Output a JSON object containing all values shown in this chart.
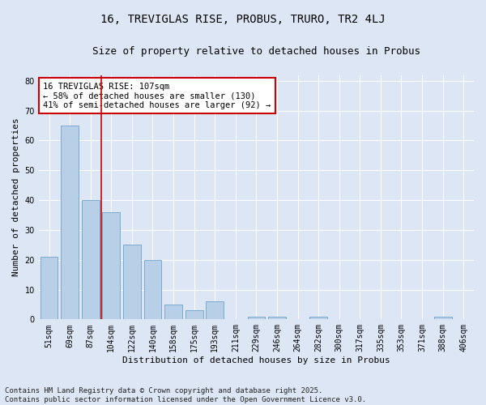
{
  "title1": "16, TREVIGLAS RISE, PROBUS, TRURO, TR2 4LJ",
  "title2": "Size of property relative to detached houses in Probus",
  "xlabel": "Distribution of detached houses by size in Probus",
  "ylabel": "Number of detached properties",
  "categories": [
    "51sqm",
    "69sqm",
    "87sqm",
    "104sqm",
    "122sqm",
    "140sqm",
    "158sqm",
    "175sqm",
    "193sqm",
    "211sqm",
    "229sqm",
    "246sqm",
    "264sqm",
    "282sqm",
    "300sqm",
    "317sqm",
    "335sqm",
    "353sqm",
    "371sqm",
    "388sqm",
    "406sqm"
  ],
  "values": [
    21,
    65,
    40,
    36,
    25,
    20,
    5,
    3,
    6,
    0,
    1,
    1,
    0,
    1,
    0,
    0,
    0,
    0,
    0,
    1,
    0
  ],
  "bar_color": "#b8cfe8",
  "bar_edge_color": "#7aaad0",
  "vline_color": "#cc0000",
  "annotation_text": "16 TREVIGLAS RISE: 107sqm\n← 58% of detached houses are smaller (130)\n41% of semi-detached houses are larger (92) →",
  "annotation_box_color": "#ffffff",
  "annotation_box_edge": "#cc0000",
  "ylim": [
    0,
    82
  ],
  "yticks": [
    0,
    10,
    20,
    30,
    40,
    50,
    60,
    70,
    80
  ],
  "footer1": "Contains HM Land Registry data © Crown copyright and database right 2025.",
  "footer2": "Contains public sector information licensed under the Open Government Licence v3.0.",
  "bg_color": "#dce6f5",
  "plot_bg_color": "#dce6f5",
  "grid_color": "#ffffff",
  "title1_fontsize": 10,
  "title2_fontsize": 9,
  "annotation_fontsize": 7.5,
  "footer_fontsize": 6.5,
  "tick_fontsize": 7,
  "ylabel_fontsize": 8,
  "xlabel_fontsize": 8
}
